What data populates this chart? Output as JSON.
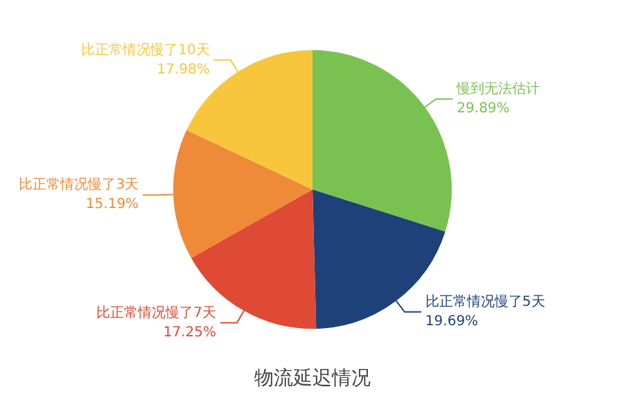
{
  "chart_data": {
    "type": "pie",
    "title": "物流延迟情况",
    "categories": [
      "慢到无法估计",
      "比正常情况慢了5天",
      "比正常情况慢了7天",
      "比正常情况慢了3天",
      "比正常情况慢了10天"
    ],
    "values": [
      29.89,
      19.69,
      17.25,
      15.19,
      17.98
    ],
    "colors": [
      "#79c251",
      "#1e4179",
      "#de4a33",
      "#ef8a39",
      "#f8c63d"
    ],
    "value_labels": [
      "29.89%",
      "19.69%",
      "17.25%",
      "15.19%",
      "17.98%"
    ],
    "legend": false
  }
}
